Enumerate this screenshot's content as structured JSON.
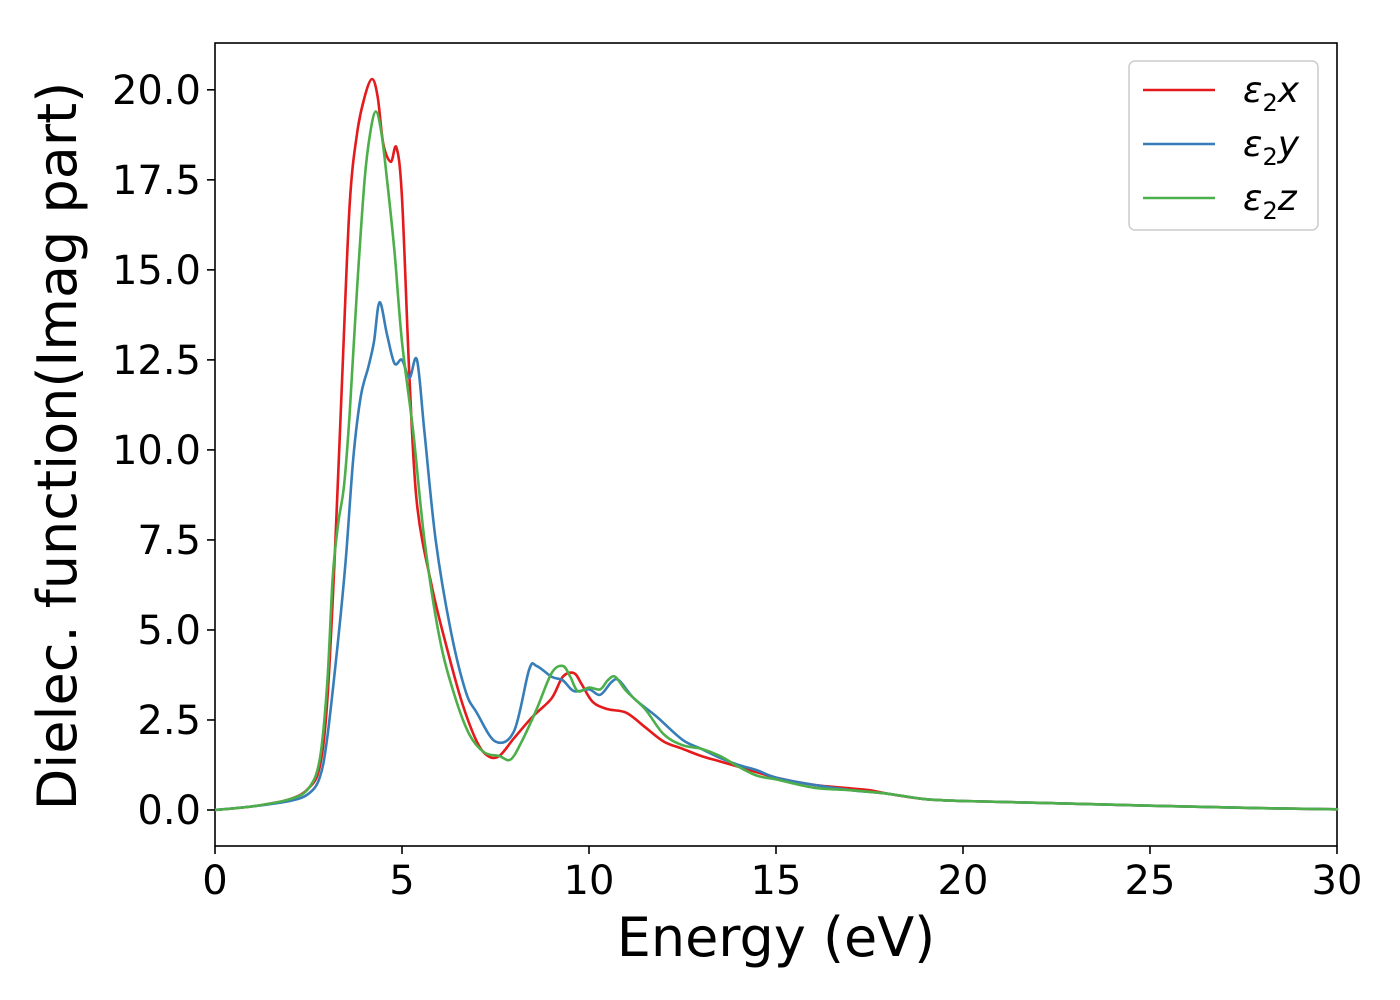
{
  "chart_data": {
    "type": "line",
    "title": "",
    "xlabel": "Energy (eV)",
    "ylabel": "Dielec. function(Imag part)",
    "xlim": [
      0,
      30
    ],
    "ylim": [
      -1.0,
      21.3
    ],
    "xticks": [
      0,
      5,
      10,
      15,
      20,
      25,
      30
    ],
    "xtick_labels": [
      "0",
      "5",
      "10",
      "15",
      "20",
      "25",
      "30"
    ],
    "yticks": [
      0,
      2.5,
      5,
      7.5,
      10,
      12.5,
      15,
      17.5,
      20
    ],
    "ytick_labels": [
      "0.0",
      "2.5",
      "5.0",
      "7.5",
      "10.0",
      "12.5",
      "15.0",
      "17.5",
      "20.0"
    ],
    "grid": false,
    "legend_position": "top-right",
    "series": [
      {
        "name": "ε2x",
        "legend_main": "ε",
        "legend_sub": "2",
        "legend_tail": "x",
        "color": "#e41a1c",
        "x": [
          0,
          1,
          2,
          2.5,
          2.8,
          3.0,
          3.2,
          3.4,
          3.6,
          3.8,
          4.0,
          4.2,
          4.35,
          4.5,
          4.7,
          4.85,
          5.0,
          5.2,
          5.4,
          5.8,
          6.2,
          6.6,
          7.0,
          7.3,
          7.6,
          8.0,
          8.5,
          9.0,
          9.3,
          9.6,
          9.8,
          10.1,
          10.5,
          11.0,
          11.5,
          12.0,
          12.5,
          13.0,
          13.5,
          14.0,
          15.0,
          16.0,
          17.0,
          17.5,
          18.0,
          19.0,
          20.0,
          22.0,
          25.0,
          28.0,
          30.0
        ],
        "y": [
          0,
          0.1,
          0.3,
          0.6,
          1.2,
          3.0,
          7.0,
          12.0,
          16.8,
          18.8,
          19.8,
          20.3,
          19.8,
          18.5,
          18.0,
          18.4,
          17.0,
          12.0,
          8.5,
          6.2,
          4.5,
          3.0,
          1.9,
          1.5,
          1.5,
          2.0,
          2.6,
          3.1,
          3.7,
          3.8,
          3.5,
          3.0,
          2.8,
          2.7,
          2.3,
          1.9,
          1.7,
          1.5,
          1.35,
          1.2,
          0.9,
          0.7,
          0.6,
          0.55,
          0.45,
          0.3,
          0.25,
          0.2,
          0.12,
          0.05,
          0.02
        ]
      },
      {
        "name": "ε2y",
        "legend_main": "ε",
        "legend_sub": "2",
        "legend_tail": "y",
        "color": "#377eb8",
        "x": [
          0,
          1,
          2,
          2.5,
          2.8,
          3.0,
          3.3,
          3.5,
          3.7,
          3.9,
          4.1,
          4.25,
          4.4,
          4.6,
          4.8,
          5.0,
          5.2,
          5.4,
          5.6,
          5.9,
          6.3,
          6.7,
          7.0,
          7.5,
          8.0,
          8.4,
          8.6,
          9.0,
          9.3,
          9.6,
          10.0,
          10.3,
          10.6,
          10.8,
          11.2,
          11.8,
          12.5,
          13.0,
          13.5,
          14.0,
          14.5,
          15.0,
          16.0,
          17.0,
          18.0,
          19.0,
          20.0,
          22.0,
          25.0,
          28.0,
          30.0
        ],
        "y": [
          0,
          0.1,
          0.25,
          0.45,
          0.9,
          2.0,
          4.8,
          7.0,
          9.8,
          11.5,
          12.3,
          13.0,
          14.1,
          13.2,
          12.4,
          12.5,
          12.0,
          12.5,
          10.5,
          7.5,
          5.0,
          3.3,
          2.7,
          1.9,
          2.2,
          3.9,
          4.0,
          3.7,
          3.6,
          3.3,
          3.35,
          3.2,
          3.55,
          3.6,
          3.1,
          2.6,
          1.95,
          1.7,
          1.45,
          1.25,
          1.1,
          0.9,
          0.7,
          0.55,
          0.45,
          0.3,
          0.25,
          0.2,
          0.12,
          0.05,
          0.02
        ]
      },
      {
        "name": "ε2z",
        "legend_main": "ε",
        "legend_sub": "2",
        "legend_tail": "z",
        "color": "#4daf4a",
        "x": [
          0,
          1,
          2,
          2.5,
          2.8,
          3.0,
          3.15,
          3.3,
          3.45,
          3.6,
          3.8,
          4.0,
          4.15,
          4.3,
          4.45,
          4.6,
          4.8,
          5.0,
          5.3,
          5.6,
          6.0,
          6.4,
          6.8,
          7.2,
          7.6,
          7.9,
          8.2,
          8.6,
          9.0,
          9.3,
          9.5,
          9.7,
          10.0,
          10.3,
          10.5,
          10.7,
          11.0,
          11.5,
          12.0,
          12.5,
          13.0,
          13.5,
          14.0,
          14.5,
          15.0,
          16.0,
          17.0,
          18.0,
          19.0,
          20.0,
          22.0,
          25.0,
          28.0,
          30.0
        ],
        "y": [
          0,
          0.1,
          0.3,
          0.6,
          1.4,
          3.5,
          6.5,
          8.0,
          9.0,
          11.0,
          14.5,
          17.5,
          18.8,
          19.4,
          18.8,
          17.5,
          15.5,
          13.0,
          10.5,
          7.5,
          4.8,
          3.2,
          2.1,
          1.6,
          1.5,
          1.4,
          1.9,
          2.8,
          3.8,
          4.0,
          3.7,
          3.3,
          3.4,
          3.35,
          3.6,
          3.7,
          3.3,
          2.8,
          2.1,
          1.8,
          1.7,
          1.5,
          1.2,
          0.95,
          0.85,
          0.62,
          0.55,
          0.45,
          0.3,
          0.25,
          0.2,
          0.12,
          0.05,
          0.02
        ]
      }
    ]
  }
}
